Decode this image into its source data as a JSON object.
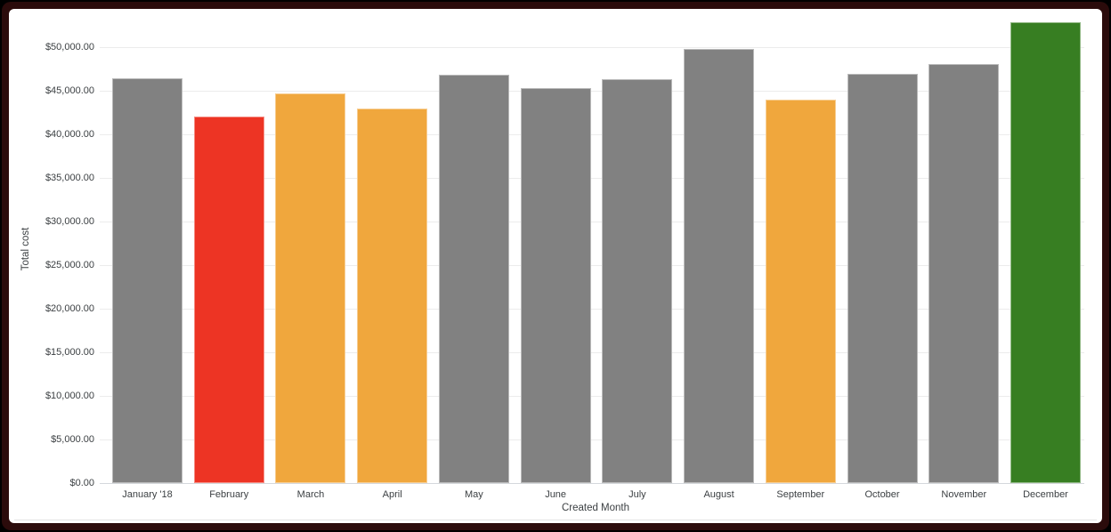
{
  "chart_data": {
    "type": "bar",
    "title": "",
    "xlabel": "Created Month",
    "ylabel": "Total cost",
    "categories": [
      "January '18",
      "February",
      "March",
      "April",
      "May",
      "June",
      "July",
      "August",
      "September",
      "October",
      "November",
      "December"
    ],
    "values": [
      46450,
      42000,
      44700,
      43000,
      46850,
      45300,
      46350,
      49800,
      44000,
      46900,
      48050,
      52850
    ],
    "bar_color_roles": [
      "gray",
      "red",
      "orange",
      "orange",
      "gray",
      "gray",
      "gray",
      "gray",
      "orange",
      "gray",
      "gray",
      "green"
    ],
    "palette": {
      "gray": "#818181",
      "red": "#ED3424",
      "orange": "#F0A73D",
      "green": "#377E22"
    },
    "y_tick_labels": [
      "$0.00",
      "$5,000.00",
      "$10,000.00",
      "$15,000.00",
      "$20,000.00",
      "$25,000.00",
      "$30,000.00",
      "$35,000.00",
      "$40,000.00",
      "$45,000.00",
      "$50,000.00"
    ],
    "y_tick_values": [
      0,
      5000,
      10000,
      15000,
      20000,
      25000,
      30000,
      35000,
      40000,
      45000,
      50000
    ],
    "ylim": [
      0,
      53550
    ],
    "grid": "horizontal",
    "legend": "none"
  },
  "frame": {
    "border_color": "#2b0b0b",
    "card_background": "#ffffff"
  }
}
